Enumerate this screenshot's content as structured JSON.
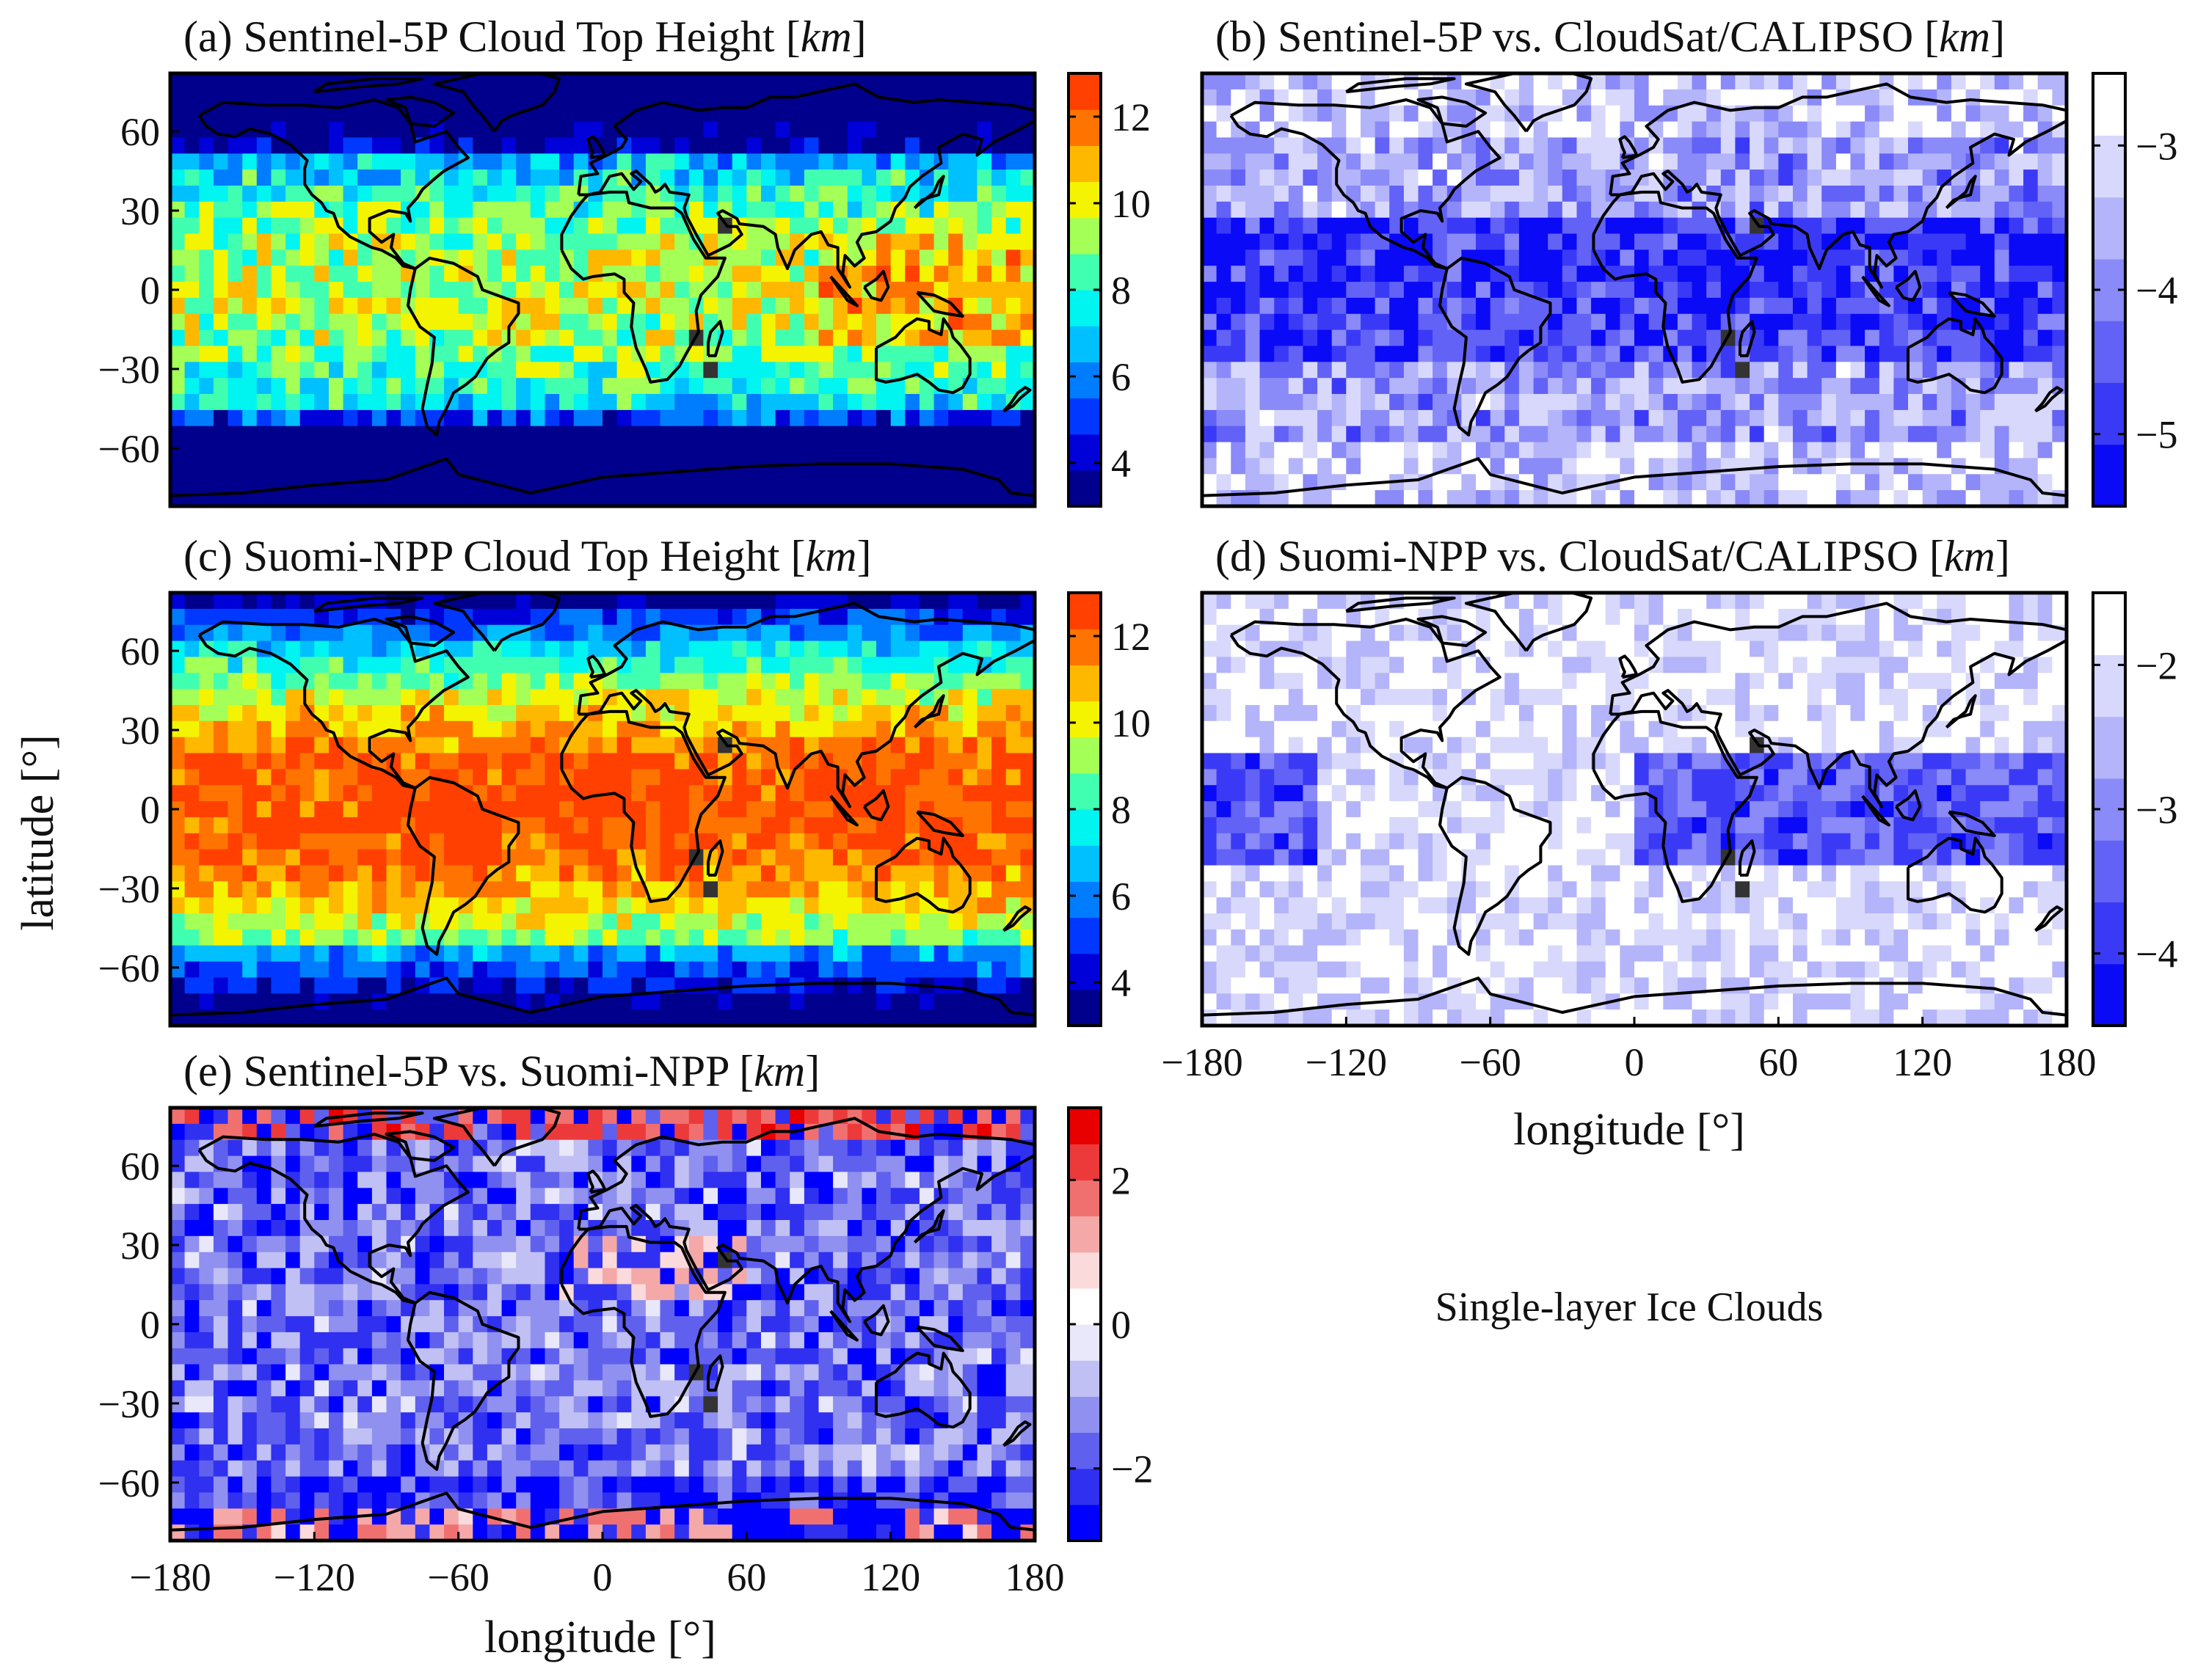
{
  "figure": {
    "note": "Single-layer Ice Clouds",
    "ylabel": "latitude [°]",
    "xlabel": "longitude [°]"
  },
  "chart_data": [
    {
      "id": "a",
      "type": "heatmap",
      "title_prefix": "(a)  Sentinel-5P  Cloud  Top  Height  [",
      "title_unit": "km",
      "title_suffix": "]",
      "xlim": [
        -180,
        180
      ],
      "ylim": [
        -82,
        82
      ],
      "xticks": [],
      "yticks": [
        "60",
        "30",
        "0",
        "−30",
        "−60"
      ],
      "ytick_values": [
        60,
        30,
        0,
        -30,
        -60
      ],
      "colorbar": {
        "range": [
          3,
          13
        ],
        "ticks": [
          "4",
          "6",
          "8",
          "10",
          "12"
        ],
        "tick_values": [
          4,
          6,
          8,
          10,
          12
        ],
        "colors": [
          "#00008c",
          "#0000d8",
          "#0038ff",
          "#007cff",
          "#00c0ff",
          "#00f4f0",
          "#40ffb0",
          "#a4ff56",
          "#f4f400",
          "#ffb800",
          "#ff7400",
          "#ff4000"
        ]
      },
      "field": "s5p_cth"
    },
    {
      "id": "b",
      "type": "heatmap",
      "title_prefix": "(b)  Sentinel-5P  vs.  CloudSat/CALIPSO  [",
      "title_unit": "km",
      "title_suffix": "]",
      "xlim": [
        -180,
        180
      ],
      "ylim": [
        -82,
        82
      ],
      "xticks": [],
      "yticks": [],
      "colorbar": {
        "range": [
          -5.5,
          -2.5
        ],
        "ticks": [
          "−3",
          "−4",
          "−5"
        ],
        "tick_values": [
          -3,
          -4,
          -5
        ],
        "colors": [
          "#0a0af6",
          "#3a3af6",
          "#6262f6",
          "#8a8af8",
          "#b4b4fa",
          "#d8d8fc",
          "#ffffff"
        ]
      },
      "field": "s5p_bias"
    },
    {
      "id": "c",
      "type": "heatmap",
      "title_prefix": "(c)  Suomi-NPP  Cloud  Top  Height  [",
      "title_unit": "km",
      "title_suffix": "]",
      "xlim": [
        -180,
        180
      ],
      "ylim": [
        -82,
        82
      ],
      "xticks": [],
      "yticks": [
        "60",
        "30",
        "0",
        "−30",
        "−60"
      ],
      "ytick_values": [
        60,
        30,
        0,
        -30,
        -60
      ],
      "colorbar": {
        "range": [
          3,
          13
        ],
        "ticks": [
          "4",
          "6",
          "8",
          "10",
          "12"
        ],
        "tick_values": [
          4,
          6,
          8,
          10,
          12
        ],
        "colors": [
          "#00008c",
          "#0000d8",
          "#0038ff",
          "#007cff",
          "#00c0ff",
          "#00f4f0",
          "#40ffb0",
          "#a4ff56",
          "#f4f400",
          "#ffb800",
          "#ff7400",
          "#ff4000"
        ]
      },
      "field": "npp_cth"
    },
    {
      "id": "d",
      "type": "heatmap",
      "title_prefix": "(d)  Suomi-NPP  vs.  CloudSat/CALIPSO  [",
      "title_unit": "km",
      "title_suffix": "]",
      "xlim": [
        -180,
        180
      ],
      "ylim": [
        -82,
        82
      ],
      "xticks": [
        "−180",
        "−120",
        "−60",
        "0",
        "60",
        "120",
        "180"
      ],
      "xtick_values": [
        -180,
        -120,
        -60,
        0,
        60,
        120,
        180
      ],
      "yticks": [],
      "colorbar": {
        "range": [
          -4.5,
          -1.5
        ],
        "ticks": [
          "−2",
          "−3",
          "−4"
        ],
        "tick_values": [
          -2,
          -3,
          -4
        ],
        "colors": [
          "#0a0af6",
          "#3a3af6",
          "#6262f6",
          "#8a8af8",
          "#b4b4fa",
          "#d8d8fc",
          "#ffffff"
        ]
      },
      "field": "npp_bias"
    },
    {
      "id": "e",
      "type": "heatmap",
      "title_prefix": "(e)  Sentinel-5P  vs.  Suomi-NPP  [",
      "title_unit": "km",
      "title_suffix": "]",
      "xlim": [
        -180,
        180
      ],
      "ylim": [
        -82,
        82
      ],
      "xticks": [
        "−180",
        "−120",
        "−60",
        "0",
        "60",
        "120",
        "180"
      ],
      "xtick_values": [
        -180,
        -120,
        -60,
        0,
        60,
        120,
        180
      ],
      "yticks": [
        "60",
        "30",
        "0",
        "−30",
        "−60"
      ],
      "ytick_values": [
        60,
        30,
        0,
        -30,
        -60
      ],
      "colorbar": {
        "range": [
          -3,
          3
        ],
        "ticks": [
          "2",
          "0",
          "−2"
        ],
        "tick_values": [
          2,
          0,
          -2
        ],
        "colors": [
          "#0000ff",
          "#3030f0",
          "#6060ee",
          "#9090f0",
          "#c0c0f4",
          "#e8e8fa",
          "#ffffff",
          "#fadada",
          "#f4a8a8",
          "#f07070",
          "#ec3a3a",
          "#e80000"
        ]
      },
      "field": "diff"
    }
  ]
}
